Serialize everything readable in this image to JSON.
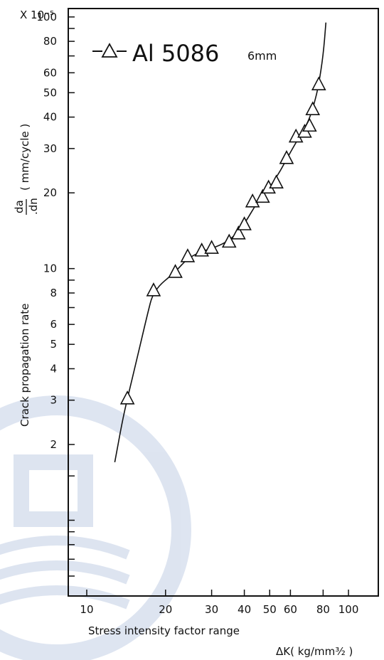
{
  "chart_data": {
    "type": "scatter",
    "title": "",
    "legend": {
      "entries": [
        {
          "marker": "triangle",
          "label": "Al 5086",
          "sublabel": "6mm"
        }
      ],
      "placement": "top-left"
    },
    "xlabel": "Stress intensity factor range",
    "xunit_label": "ΔK( kg/mm³⁄₂ )",
    "ylabel": "Crack propagation rate",
    "ylabel_fraction": {
      "numerator": "da",
      "denominator": ".dn"
    },
    "yunit_label": "( mm/cycle )",
    "y_multiplier_label": "X 10⁻⁵",
    "xscale": "log",
    "yscale": "log",
    "xlim": [
      8.5,
      130
    ],
    "ylim": [
      0.5,
      108
    ],
    "x_ticks": [
      {
        "value": 10,
        "label": "10"
      },
      {
        "value": 20,
        "label": "20"
      },
      {
        "value": 30,
        "label": "30"
      },
      {
        "value": 40,
        "label": "40"
      },
      {
        "value": 50,
        "label": "50"
      },
      {
        "value": 60,
        "label": "60"
      },
      {
        "value": 80,
        "label": "80"
      },
      {
        "value": 100,
        "label": "100"
      }
    ],
    "y_ticks": [
      {
        "value": 2,
        "label": "2"
      },
      {
        "value": 3,
        "label": "3"
      },
      {
        "value": 4,
        "label": "4"
      },
      {
        "value": 5,
        "label": "5"
      },
      {
        "value": 6,
        "label": "6"
      },
      {
        "value": 8,
        "label": "8"
      },
      {
        "value": 10,
        "label": "10"
      },
      {
        "value": 20,
        "label": "20"
      },
      {
        "value": 30,
        "label": "30"
      },
      {
        "value": 40,
        "label": "40"
      },
      {
        "value": 50,
        "label": "50"
      },
      {
        "value": 60,
        "label": "60"
      },
      {
        "value": 80,
        "label": "80"
      },
      {
        "value": 100,
        "label": "100"
      }
    ],
    "y_minor_ticks": [
      0.6,
      0.7,
      0.8,
      0.9,
      1,
      1.5,
      7,
      9,
      70,
      90
    ],
    "series": [
      {
        "marker": "triangle",
        "points": [
          {
            "x": 14.3,
            "y": 3.05
          },
          {
            "x": 18.0,
            "y": 8.2
          },
          {
            "x": 21.8,
            "y": 9.7
          },
          {
            "x": 24.3,
            "y": 11.2
          },
          {
            "x": 27.5,
            "y": 11.8
          },
          {
            "x": 30.0,
            "y": 12.1
          },
          {
            "x": 35.0,
            "y": 12.8
          },
          {
            "x": 38.0,
            "y": 13.8
          },
          {
            "x": 40.0,
            "y": 15.0
          },
          {
            "x": 43.0,
            "y": 18.5
          },
          {
            "x": 47.0,
            "y": 19.3
          },
          {
            "x": 49.5,
            "y": 21.0
          },
          {
            "x": 53.0,
            "y": 22.0
          },
          {
            "x": 58.0,
            "y": 27.5
          },
          {
            "x": 63.0,
            "y": 33.5
          },
          {
            "x": 68.0,
            "y": 35.0
          },
          {
            "x": 71.0,
            "y": 37.0
          },
          {
            "x": 73.0,
            "y": 43.0
          },
          {
            "x": 77.0,
            "y": 54.0
          }
        ]
      }
    ],
    "fit_curve": [
      {
        "x": 12.8,
        "y": 1.7
      },
      {
        "x": 13.6,
        "y": 2.4
      },
      {
        "x": 14.3,
        "y": 3.05
      },
      {
        "x": 15.5,
        "y": 4.3
      },
      {
        "x": 17.0,
        "y": 6.5
      },
      {
        "x": 18.0,
        "y": 8.2
      },
      {
        "x": 21.8,
        "y": 9.7
      },
      {
        "x": 24.3,
        "y": 11.0
      },
      {
        "x": 27.5,
        "y": 11.7
      },
      {
        "x": 32.0,
        "y": 12.3
      },
      {
        "x": 36.0,
        "y": 13.2
      },
      {
        "x": 40.0,
        "y": 15.0
      },
      {
        "x": 45.0,
        "y": 18.5
      },
      {
        "x": 50.0,
        "y": 21.0
      },
      {
        "x": 55.0,
        "y": 24.5
      },
      {
        "x": 60.0,
        "y": 29.0
      },
      {
        "x": 65.0,
        "y": 33.5
      },
      {
        "x": 70.0,
        "y": 38.0
      },
      {
        "x": 74.0,
        "y": 45.0
      },
      {
        "x": 77.0,
        "y": 54.0
      },
      {
        "x": 80.0,
        "y": 70.0
      },
      {
        "x": 82.0,
        "y": 95.0
      }
    ],
    "grid": false
  }
}
